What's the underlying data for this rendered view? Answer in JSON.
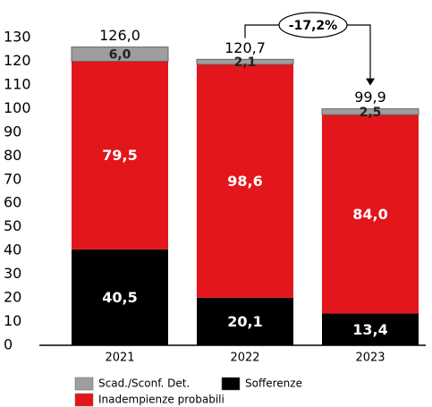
{
  "chart_data": {
    "type": "stacked_bar",
    "categories": [
      "2021",
      "2022",
      "2023"
    ],
    "series": [
      {
        "name": "Sofferenze",
        "color": "#000000",
        "values": [
          40.5,
          20.1,
          13.4
        ],
        "value_labels": [
          "40,5",
          "20,1",
          "13,4"
        ]
      },
      {
        "name": "Inadempienze probabili",
        "color": "#e3161b",
        "values": [
          79.5,
          98.6,
          84.0
        ],
        "value_labels": [
          "79,5",
          "98,6",
          "84,0"
        ]
      },
      {
        "name": "Scad./Sconf. Det.",
        "color": "#9e9e9e",
        "values": [
          6.0,
          2.1,
          2.5
        ],
        "value_labels": [
          "6,0",
          "2,1",
          "2,5"
        ]
      }
    ],
    "totals": [
      126.0,
      120.7,
      99.9
    ],
    "total_labels": [
      "126,0",
      "120,7",
      "99,9"
    ],
    "annotation": "-17,2%",
    "ylim": [
      0,
      130
    ],
    "yticks": [
      0,
      10,
      20,
      30,
      40,
      50,
      60,
      70,
      80,
      90,
      100,
      110,
      120,
      130
    ],
    "grid": false
  }
}
